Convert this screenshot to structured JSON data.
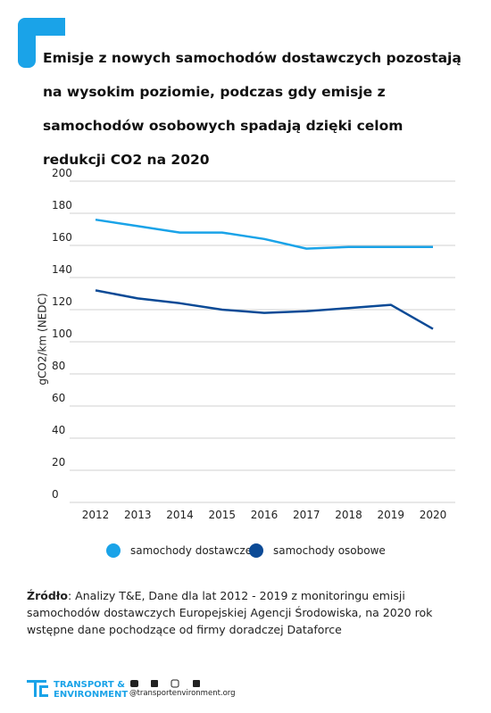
{
  "chart_data": {
    "type": "line",
    "title": "Emisje z nowych samochodów dostawczych pozostają na wysokim poziomie, podczas gdy emisje z samochodów osobowych spadają dzięki celom redukcji CO2 na 2020",
    "y_label": "gCO2/km (NEDC)",
    "categories": [
      "2012",
      "2013",
      "2014",
      "2015",
      "2016",
      "2017",
      "2018",
      "2019",
      "2020"
    ],
    "series": [
      {
        "name": "samochody dostawcze",
        "color": "#1aa3e8",
        "values": [
          176,
          172,
          168,
          168,
          164,
          158,
          159,
          159,
          159
        ]
      },
      {
        "name": "samochody osobowe",
        "color": "#0b4a96",
        "values": [
          132,
          127,
          124,
          120,
          118,
          119,
          121,
          123,
          108
        ]
      }
    ],
    "ylim": [
      0,
      200
    ],
    "yticks": [
      0,
      20,
      40,
      60,
      80,
      100,
      120,
      140,
      160,
      180,
      200
    ],
    "grid": true
  },
  "source": {
    "label": "Źródło",
    "text": ": Analizy T&E, Dane dla lat 2012 - 2019 z monitoringu emisji samochodów dostawczych Europejskiej Agencji Środowiska, na 2020 rok wstępne dane pochodzące od firmy doradczej Dataforce"
  },
  "footer": {
    "logo_line1": "TRANSPORT &",
    "logo_line2": "ENVIRONMENT",
    "website": "@transportenvironment.org"
  }
}
